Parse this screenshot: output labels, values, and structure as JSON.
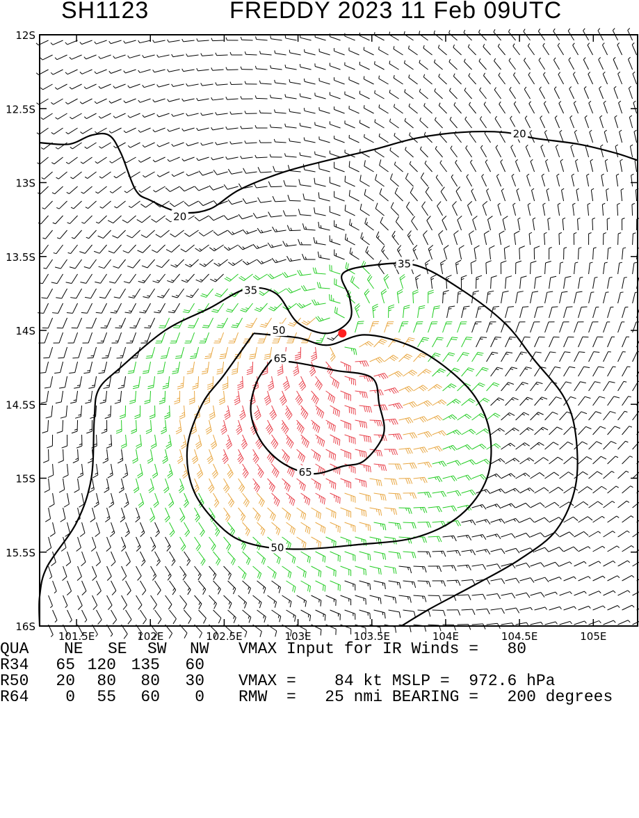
{
  "title": {
    "left": "SH1123",
    "right": "FREDDY 2023 11 Feb 09UTC"
  },
  "chart_data": {
    "type": "contour",
    "xlim": [
      101.25,
      105.3
    ],
    "ylim": [
      -16,
      -12
    ],
    "xticks": [
      101.5,
      102,
      102.5,
      103,
      103.5,
      104,
      104.5,
      105
    ],
    "xtick_labels": [
      "101.5E",
      "102E",
      "102.5E",
      "103E",
      "103.5E",
      "104E",
      "104.5E",
      "105E"
    ],
    "yticks": [
      -12,
      -12.5,
      -13,
      -13.5,
      -14,
      -14.5,
      -15,
      -15.5,
      -16
    ],
    "ytick_labels": [
      "12S",
      "12.5S",
      "13S",
      "13.5S",
      "14S",
      "14.5S",
      "15S",
      "15.5S",
      "16S"
    ],
    "center": {
      "lon": 103.3,
      "lat": -14.02
    },
    "contour_levels": [
      20,
      35,
      50,
      65
    ],
    "contour_labels": [
      {
        "text": "20",
        "lon": 104.5,
        "lat": -12.67
      },
      {
        "text": "20",
        "lon": 102.2,
        "lat": -13.23
      },
      {
        "text": "35",
        "lon": 103.72,
        "lat": -13.55
      },
      {
        "text": "35",
        "lon": 102.68,
        "lat": -13.73
      },
      {
        "text": "50",
        "lon": 102.87,
        "lat": -14.0
      },
      {
        "text": "50",
        "lon": 102.86,
        "lat": -15.47
      },
      {
        "text": "65",
        "lon": 102.88,
        "lat": -14.19
      },
      {
        "text": "65",
        "lon": 103.05,
        "lat": -14.96
      }
    ],
    "wind_colors": {
      "below_35": "#000000",
      "35_to_50": "#22cc22",
      "50_to_65": "#e8a640",
      "above_65": "#e8404a",
      "center_marker": "#ff2020"
    }
  },
  "footer": {
    "header_row": [
      "QUA",
      "NE",
      "SE",
      "SW",
      "NW"
    ],
    "header_text": "VMAX Input for IR Winds =   80",
    "rows": [
      {
        "label": "R34",
        "values": [
          "65",
          "120",
          "135",
          "60"
        ],
        "text": ""
      },
      {
        "label": "R50",
        "values": [
          "20",
          "80",
          "80",
          "30"
        ],
        "text": "VMAX =    84 kt MSLP =  972.6 hPa"
      },
      {
        "label": "R64",
        "values": [
          "0",
          "55",
          "60",
          "0"
        ],
        "text": "RMW  =   25 nmi BEARING =   200 degrees"
      }
    ]
  }
}
